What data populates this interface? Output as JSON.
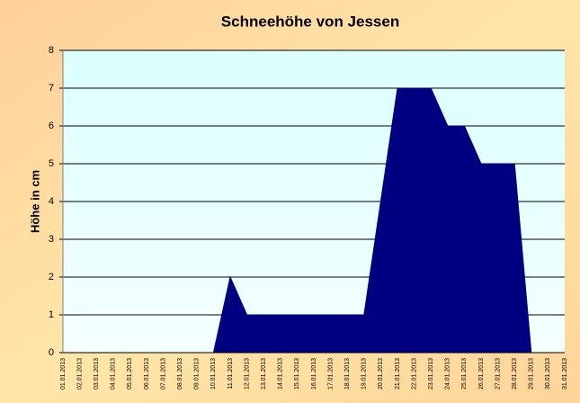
{
  "chart_data": {
    "type": "area",
    "title": "Schneehöhe von Jessen",
    "y_label": "Höhe in cm",
    "categories": [
      "01.01.2013",
      "02.01.2013",
      "03.01.2013",
      "04.01.2013",
      "05.01.2013",
      "06.01.2013",
      "07.01.2013",
      "08.01.2013",
      "09.01.2013",
      "10.01.2013",
      "11.01.2013",
      "12.01.2013",
      "13.01.2013",
      "14.01.2013",
      "15.01.2013",
      "16.01.2013",
      "17.01.2013",
      "18.01.2013",
      "19.01.2013",
      "20.01.2013",
      "21.01.2013",
      "22.01.2013",
      "23.01.2013",
      "24.01.2013",
      "25.01.2013",
      "26.01.2013",
      "27.01.2013",
      "28.01.2013",
      "29.01.2013",
      "30.01.2013",
      "31.01.2013"
    ],
    "values": [
      0,
      0,
      0,
      0,
      0,
      0,
      0,
      0,
      0,
      0,
      2,
      1,
      1,
      1,
      1,
      1,
      1,
      1,
      1,
      4,
      7,
      7,
      7,
      6,
      6,
      5,
      5,
      5,
      0,
      0,
      0
    ],
    "color": "#000080",
    "ylim": [
      0,
      8
    ],
    "yticks": [
      0,
      1,
      2,
      3,
      4,
      5,
      6,
      7,
      8
    ],
    "grid": true
  }
}
